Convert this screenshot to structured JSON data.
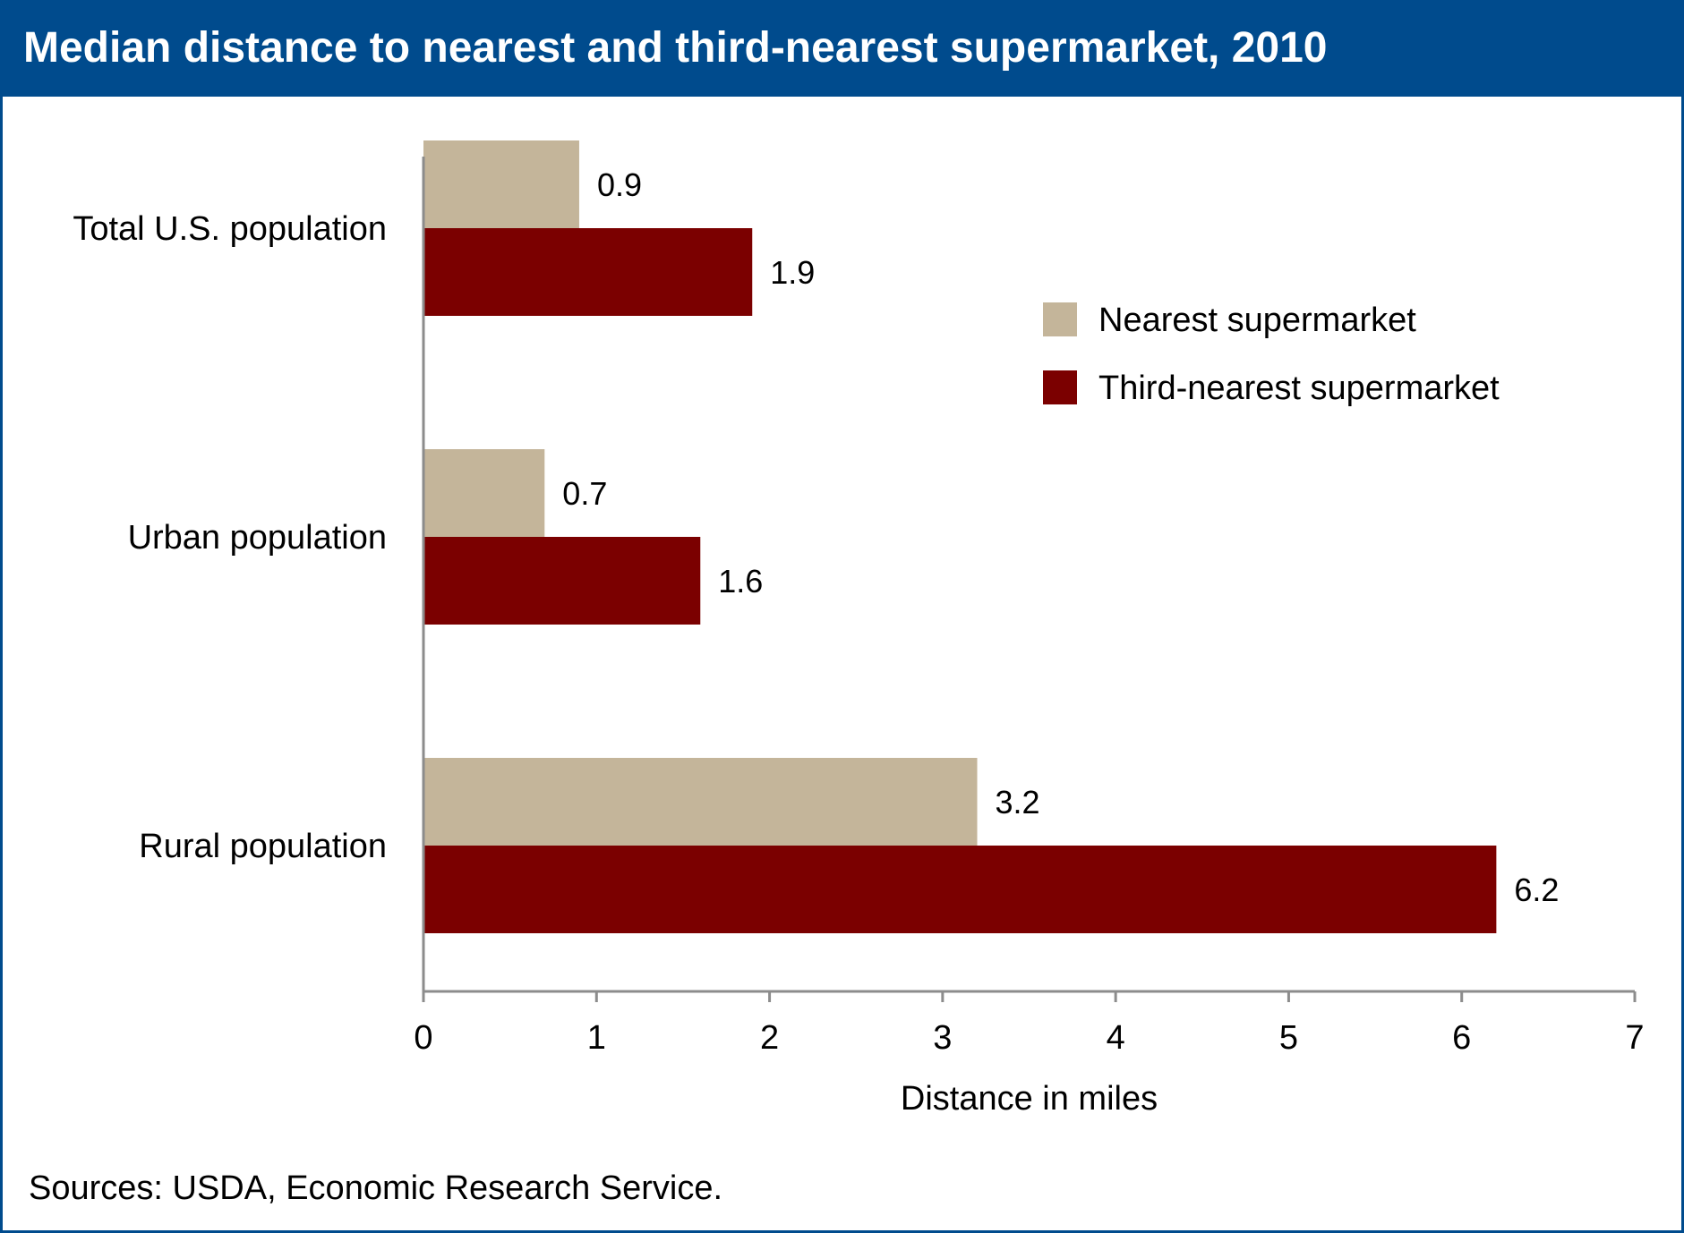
{
  "title": "Median distance to nearest and third-nearest supermarket, 2010",
  "source": "Sources: USDA, Economic Research Service.",
  "colors": {
    "header": "#004b8d",
    "nearest": "#c4b59a",
    "third": "#7b0000"
  },
  "chart_data": {
    "type": "bar",
    "orientation": "horizontal",
    "categories": [
      "Total U.S. population",
      "Urban population",
      "Rural population"
    ],
    "series": [
      {
        "name": "Nearest supermarket",
        "values": [
          0.9,
          0.7,
          3.2
        ],
        "labels": [
          "0.9",
          "0.7",
          "3.2"
        ],
        "color": "#c4b59a"
      },
      {
        "name": "Third-nearest supermarket",
        "values": [
          1.9,
          1.6,
          6.2
        ],
        "labels": [
          "1.9",
          "1.6",
          "6.2"
        ],
        "color": "#7b0000"
      }
    ],
    "xlabel": "Distance in miles",
    "ylabel": "",
    "xlim": [
      0,
      7
    ],
    "xticks": [
      "0",
      "1",
      "2",
      "3",
      "4",
      "5",
      "6",
      "7"
    ],
    "legend": "right",
    "grid": false
  }
}
